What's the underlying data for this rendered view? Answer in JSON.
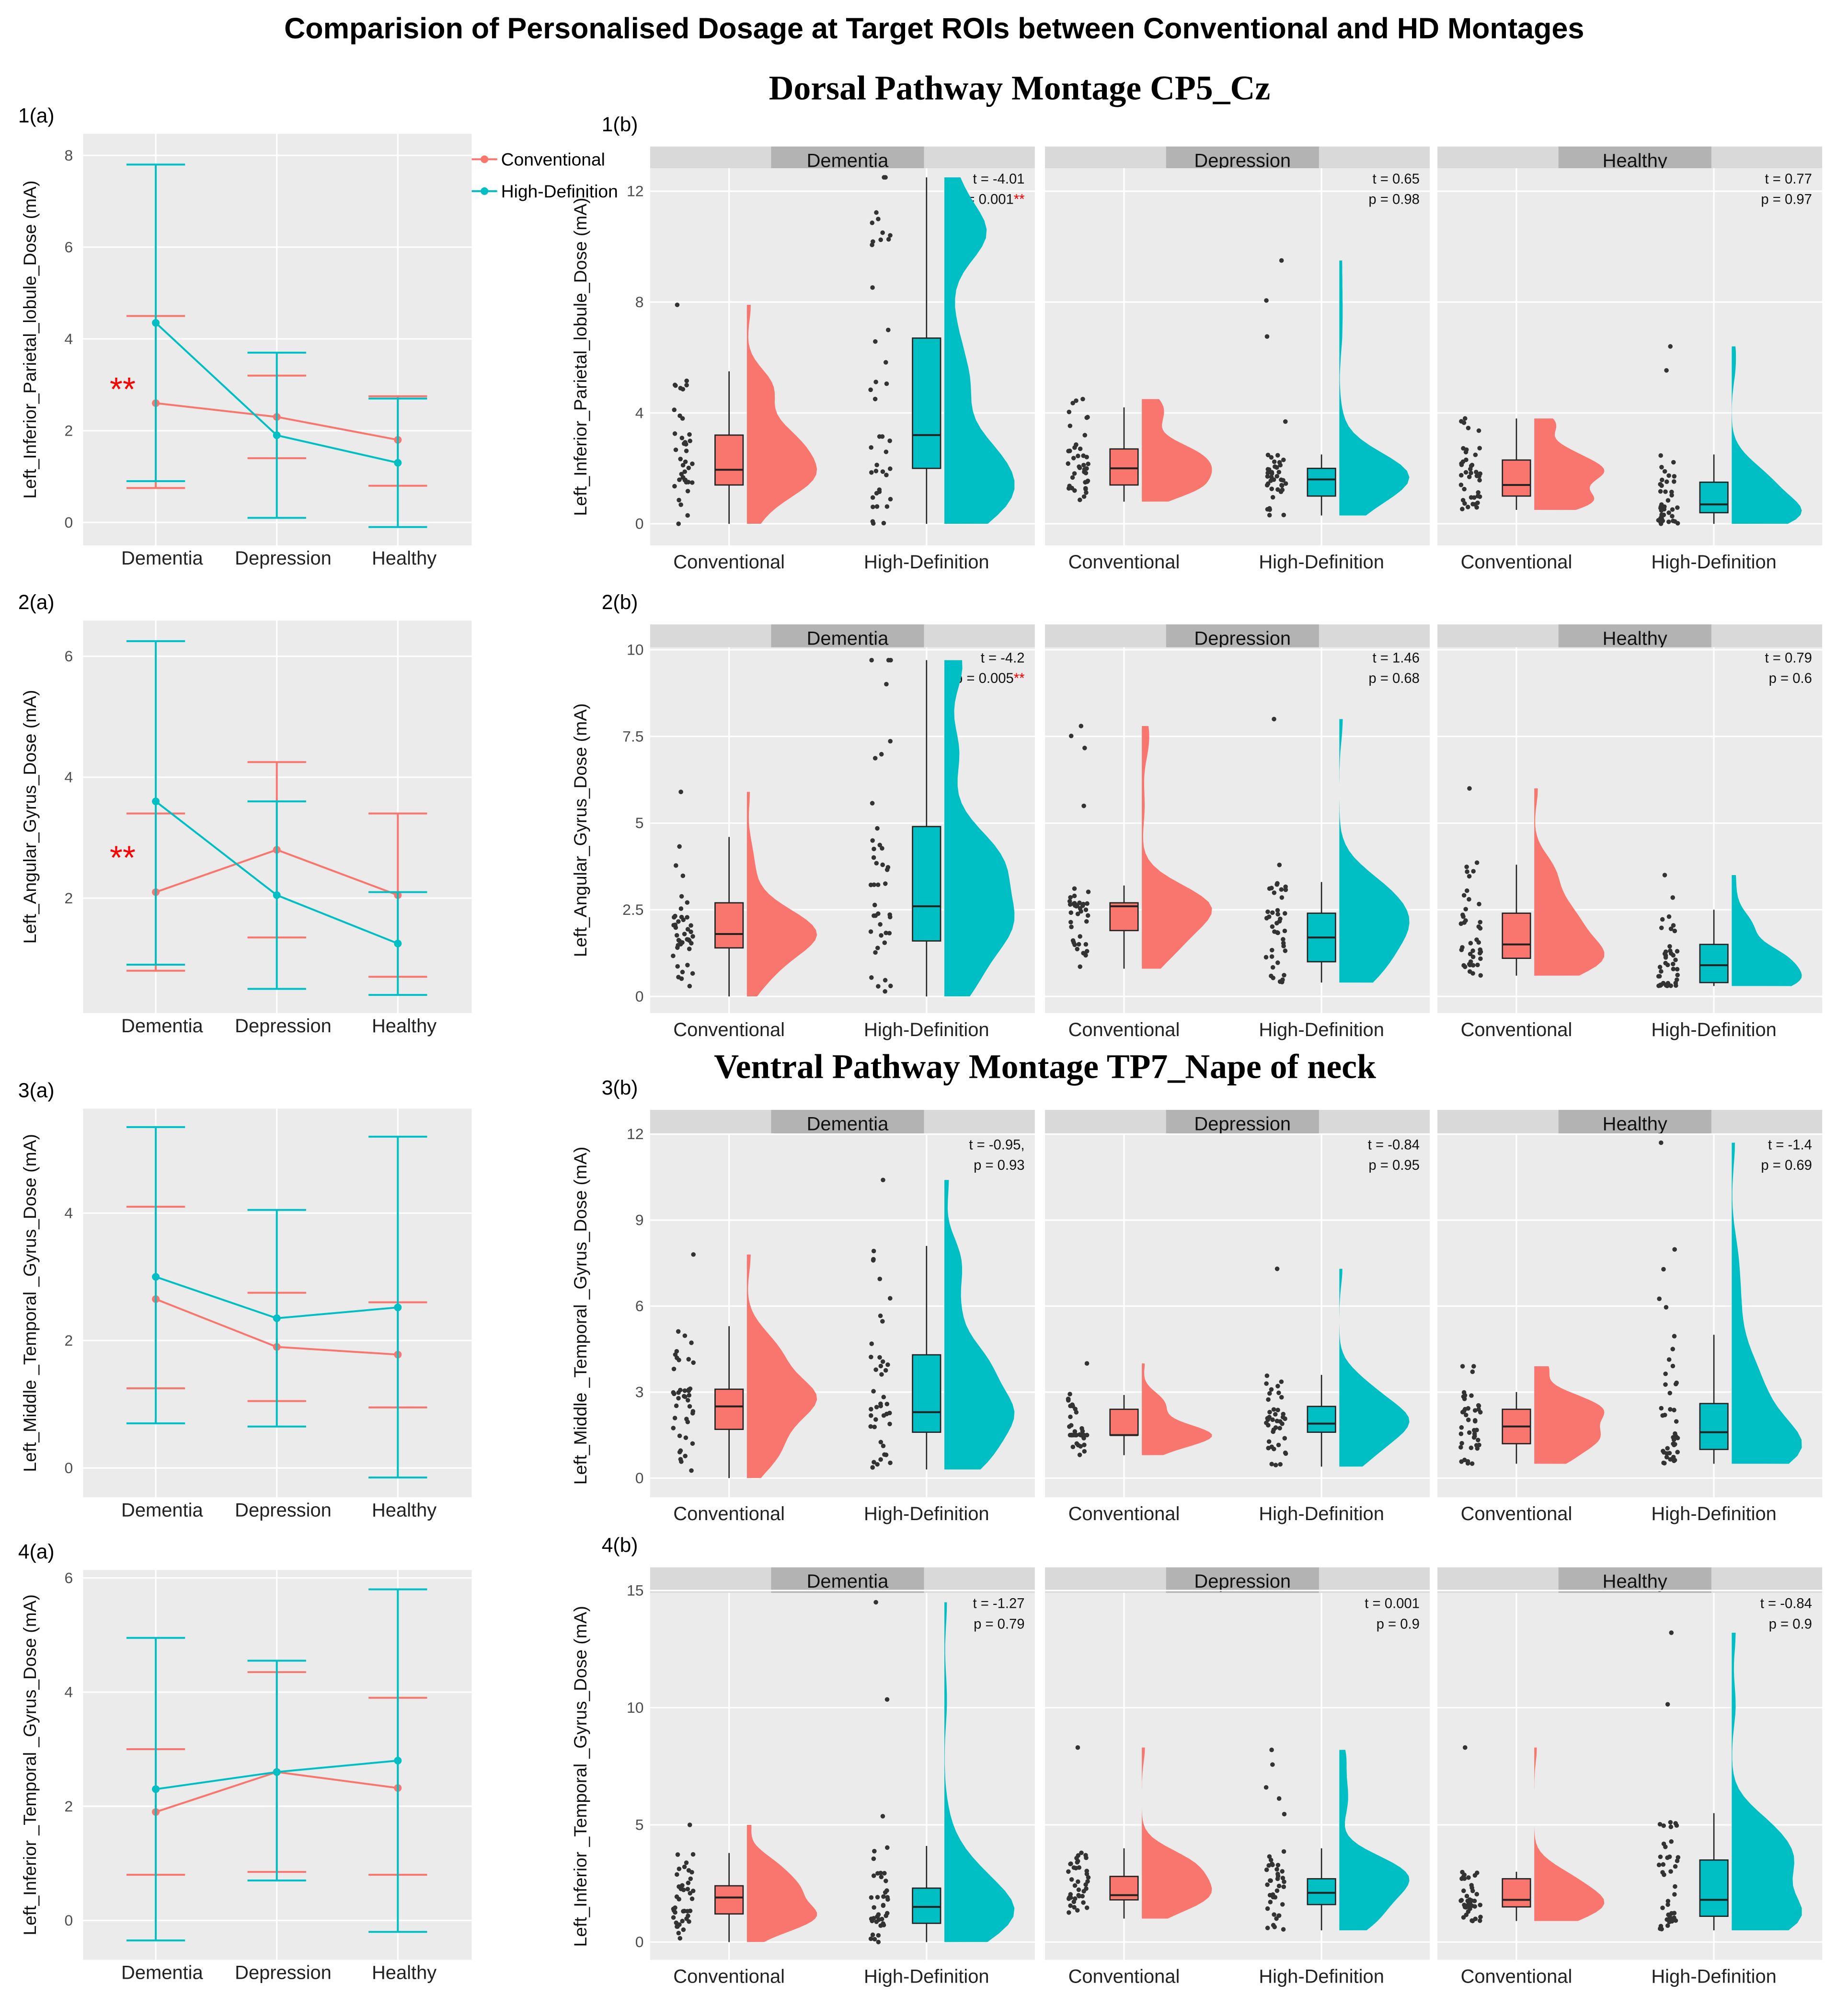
{
  "title": "Comparision of Personalised Dosage at Target ROIs between Conventional and HD Montages",
  "section_titles": [
    "Dorsal Pathway Montage CP5_Cz",
    "Ventral Pathway Montage TP7_Nape of neck"
  ],
  "colors": {
    "conventional": "#f8766d",
    "high_definition": "#00bfc4",
    "significance": "#ff0000"
  },
  "chart_data": [
    {
      "type": "line",
      "panel": "1(a)",
      "ylabel": "Left_Inferior_Parietal_lobule_Dose (mA)",
      "categories": [
        "Dementia",
        "Depression",
        "Healthy"
      ],
      "ylim": [
        -0.5,
        8.47
      ],
      "yticks": [
        0,
        2,
        4,
        6,
        8
      ],
      "legend": [
        "Conventional",
        "High-Definition"
      ],
      "legend_placement": "top-right",
      "annotation": "**",
      "series": [
        {
          "name": "Conventional",
          "mean": [
            2.6,
            2.3,
            1.8
          ],
          "low": [
            0.75,
            1.4,
            0.8
          ],
          "high": [
            4.5,
            3.2,
            2.75
          ]
        },
        {
          "name": "High-Definition",
          "mean": [
            4.35,
            1.9,
            1.3
          ],
          "low": [
            0.9,
            0.1,
            -0.1
          ],
          "high": [
            7.8,
            3.7,
            2.7
          ]
        }
      ]
    },
    {
      "type": "line",
      "panel": "2(a)",
      "ylabel": "Left_Angular_Gyrus_Dose (mA)",
      "categories": [
        "Dementia",
        "Depression",
        "Healthy"
      ],
      "ylim": [
        0.1,
        6.59
      ],
      "yticks": [
        2,
        4,
        6
      ],
      "annotation": "**",
      "series": [
        {
          "name": "Conventional",
          "mean": [
            2.1,
            2.8,
            2.05
          ],
          "low": [
            0.8,
            1.35,
            0.7
          ],
          "high": [
            3.4,
            4.25,
            3.4
          ]
        },
        {
          "name": "High-Definition",
          "mean": [
            3.6,
            2.05,
            1.25
          ],
          "low": [
            0.9,
            0.5,
            0.4
          ],
          "high": [
            6.25,
            3.6,
            2.1
          ]
        }
      ]
    },
    {
      "type": "line",
      "panel": "3(a)",
      "ylabel": "Left_Middle _Temporal _Gyrus_Dose (mA)",
      "categories": [
        "Dementia",
        "Depression",
        "Healthy"
      ],
      "ylim": [
        -0.46,
        5.64
      ],
      "yticks": [
        0,
        2,
        4
      ],
      "series": [
        {
          "name": "Conventional",
          "mean": [
            2.65,
            1.9,
            1.78
          ],
          "low": [
            1.25,
            1.05,
            0.95
          ],
          "high": [
            4.1,
            2.75,
            2.6
          ]
        },
        {
          "name": "High-Definition",
          "mean": [
            3.0,
            2.35,
            2.52
          ],
          "low": [
            0.7,
            0.65,
            -0.15
          ],
          "high": [
            5.35,
            4.05,
            5.2
          ]
        }
      ]
    },
    {
      "type": "line",
      "panel": "4(a)",
      "ylabel": "Left_Inferior _Temporal _Gyrus_Dose (mA)",
      "categories": [
        "Dementia",
        "Depression",
        "Healthy"
      ],
      "ylim": [
        -0.69,
        6.14
      ],
      "yticks": [
        0,
        2,
        4,
        6
      ],
      "series": [
        {
          "name": "Conventional",
          "mean": [
            1.9,
            2.6,
            2.32
          ],
          "low": [
            0.8,
            0.85,
            0.8
          ],
          "high": [
            3.0,
            4.35,
            3.9
          ]
        },
        {
          "name": "High-Definition",
          "mean": [
            2.3,
            2.6,
            2.8
          ],
          "low": [
            -0.35,
            0.7,
            -0.2
          ],
          "high": [
            4.95,
            4.55,
            5.8
          ]
        }
      ]
    },
    {
      "type": "raincloud",
      "panel": "1(b)",
      "ylabel": "Left_Inferior_Parietal_lobule_Dose (mA)",
      "ylim": [
        -0.78,
        12.83
      ],
      "yticks": [
        0,
        4,
        8,
        12
      ],
      "x": [
        "Conventional",
        "High-Definition"
      ],
      "facets": [
        {
          "name": "Dementia",
          "t": "t = -4.01",
          "p": "p = 0.001",
          "sig": "**",
          "boxes": [
            [
              0,
              1.4,
              1.95,
              3.2,
              5.5,
              7.9
            ],
            [
              0,
              2.0,
              3.2,
              6.7,
              12.5,
              12.5
            ]
          ]
        },
        {
          "name": "Depression",
          "t": "t = 0.65",
          "p": "p = 0.98",
          "boxes": [
            [
              0.8,
              1.4,
              2.0,
              2.7,
              4.2,
              4.5
            ],
            [
              0.3,
              1.0,
              1.6,
              2.0,
              2.5,
              9.5
            ]
          ]
        },
        {
          "name": "Healthy",
          "t": "t = 0.77",
          "p": "p = 0.97",
          "boxes": [
            [
              0.5,
              1.0,
              1.4,
              2.3,
              3.8,
              3.8
            ],
            [
              0,
              0.4,
              0.7,
              1.5,
              2.5,
              6.4
            ]
          ]
        }
      ]
    },
    {
      "type": "raincloud",
      "panel": "2(b)",
      "ylabel": "Left_Angular_Gyrus_Dose (mA)",
      "ylim": [
        -0.48,
        10.07
      ],
      "yticks": [
        0,
        2.5,
        5,
        7.5,
        10
      ],
      "x": [
        "Conventional",
        "High-Definition"
      ],
      "facets": [
        {
          "name": "Dementia",
          "t": "t = -4.2",
          "p": "p = 0.005",
          "sig": "**",
          "boxes": [
            [
              0,
              1.4,
              1.8,
              2.7,
              4.6,
              5.9
            ],
            [
              0,
              1.6,
              2.6,
              4.9,
              9.7,
              9.7
            ]
          ]
        },
        {
          "name": "Depression",
          "t": "t = 1.46",
          "p": "p = 0.68",
          "boxes": [
            [
              0.8,
              1.9,
              2.6,
              2.7,
              3.2,
              7.8
            ],
            [
              0.4,
              1.0,
              1.7,
              2.4,
              3.3,
              8.0
            ]
          ]
        },
        {
          "name": "Healthy",
          "t": "t = 0.79",
          "p": "p = 0.6",
          "boxes": [
            [
              0.6,
              1.1,
              1.5,
              2.4,
              3.8,
              6.0
            ],
            [
              0.3,
              0.4,
              0.9,
              1.5,
              2.5,
              3.5
            ]
          ]
        }
      ]
    },
    {
      "type": "raincloud",
      "panel": "3(b)",
      "ylabel": "Left_Middle _Temporal _Gyrus_Dose (mA)",
      "ylim": [
        -0.67,
        12
      ],
      "yticks": [
        0,
        3,
        6,
        9,
        12
      ],
      "x": [
        "Conventional",
        "High-Definition"
      ],
      "facets": [
        {
          "name": "Dementia",
          "t": "t = -0.95,",
          "p": "p = 0.93",
          "boxes": [
            [
              0,
              1.7,
              2.5,
              3.1,
              5.3,
              7.8
            ],
            [
              0.3,
              1.6,
              2.3,
              4.3,
              8.1,
              10.4
            ]
          ]
        },
        {
          "name": "Depression",
          "t": "t = -0.84",
          "p": "p = 0.95",
          "boxes": [
            [
              0.8,
              1.5,
              1.5,
              2.4,
              2.9,
              4.0
            ],
            [
              0.4,
              1.6,
              1.9,
              2.5,
              3.6,
              7.3
            ]
          ]
        },
        {
          "name": "Healthy",
          "t": "t = -1.4",
          "p": "p = 0.69",
          "boxes": [
            [
              0.5,
              1.2,
              1.8,
              2.4,
              3.0,
              3.9
            ],
            [
              0.5,
              1.0,
              1.6,
              2.6,
              5.0,
              11.7
            ]
          ]
        }
      ]
    },
    {
      "type": "raincloud",
      "panel": "4(b)",
      "ylabel": "Left_Inferior _Temporal _Gyrus_Dose (mA)",
      "ylim": [
        -0.76,
        14.9
      ],
      "yticks": [
        0,
        5,
        10,
        15
      ],
      "x": [
        "Conventional",
        "High-Definition"
      ],
      "facets": [
        {
          "name": "Dementia",
          "t": "t = -1.27",
          "p": "p = 0.79",
          "boxes": [
            [
              0,
              1.2,
              1.9,
              2.4,
              3.8,
              5.0
            ],
            [
              0,
              0.8,
              1.5,
              2.3,
              4.1,
              14.5
            ]
          ]
        },
        {
          "name": "Depression",
          "t": "t = 0.001",
          "p": "p = 0.9",
          "boxes": [
            [
              1.0,
              1.8,
              2.0,
              2.8,
              4.0,
              8.3
            ],
            [
              0.5,
              1.6,
              2.1,
              2.7,
              4.0,
              8.2
            ]
          ]
        },
        {
          "name": "Healthy",
          "t": "t = -0.84",
          "p": "p = 0.9",
          "boxes": [
            [
              0.9,
              1.5,
              1.8,
              2.7,
              3.0,
              8.3
            ],
            [
              0.5,
              1.1,
              1.8,
              3.5,
              5.5,
              13.2
            ]
          ]
        }
      ]
    }
  ]
}
